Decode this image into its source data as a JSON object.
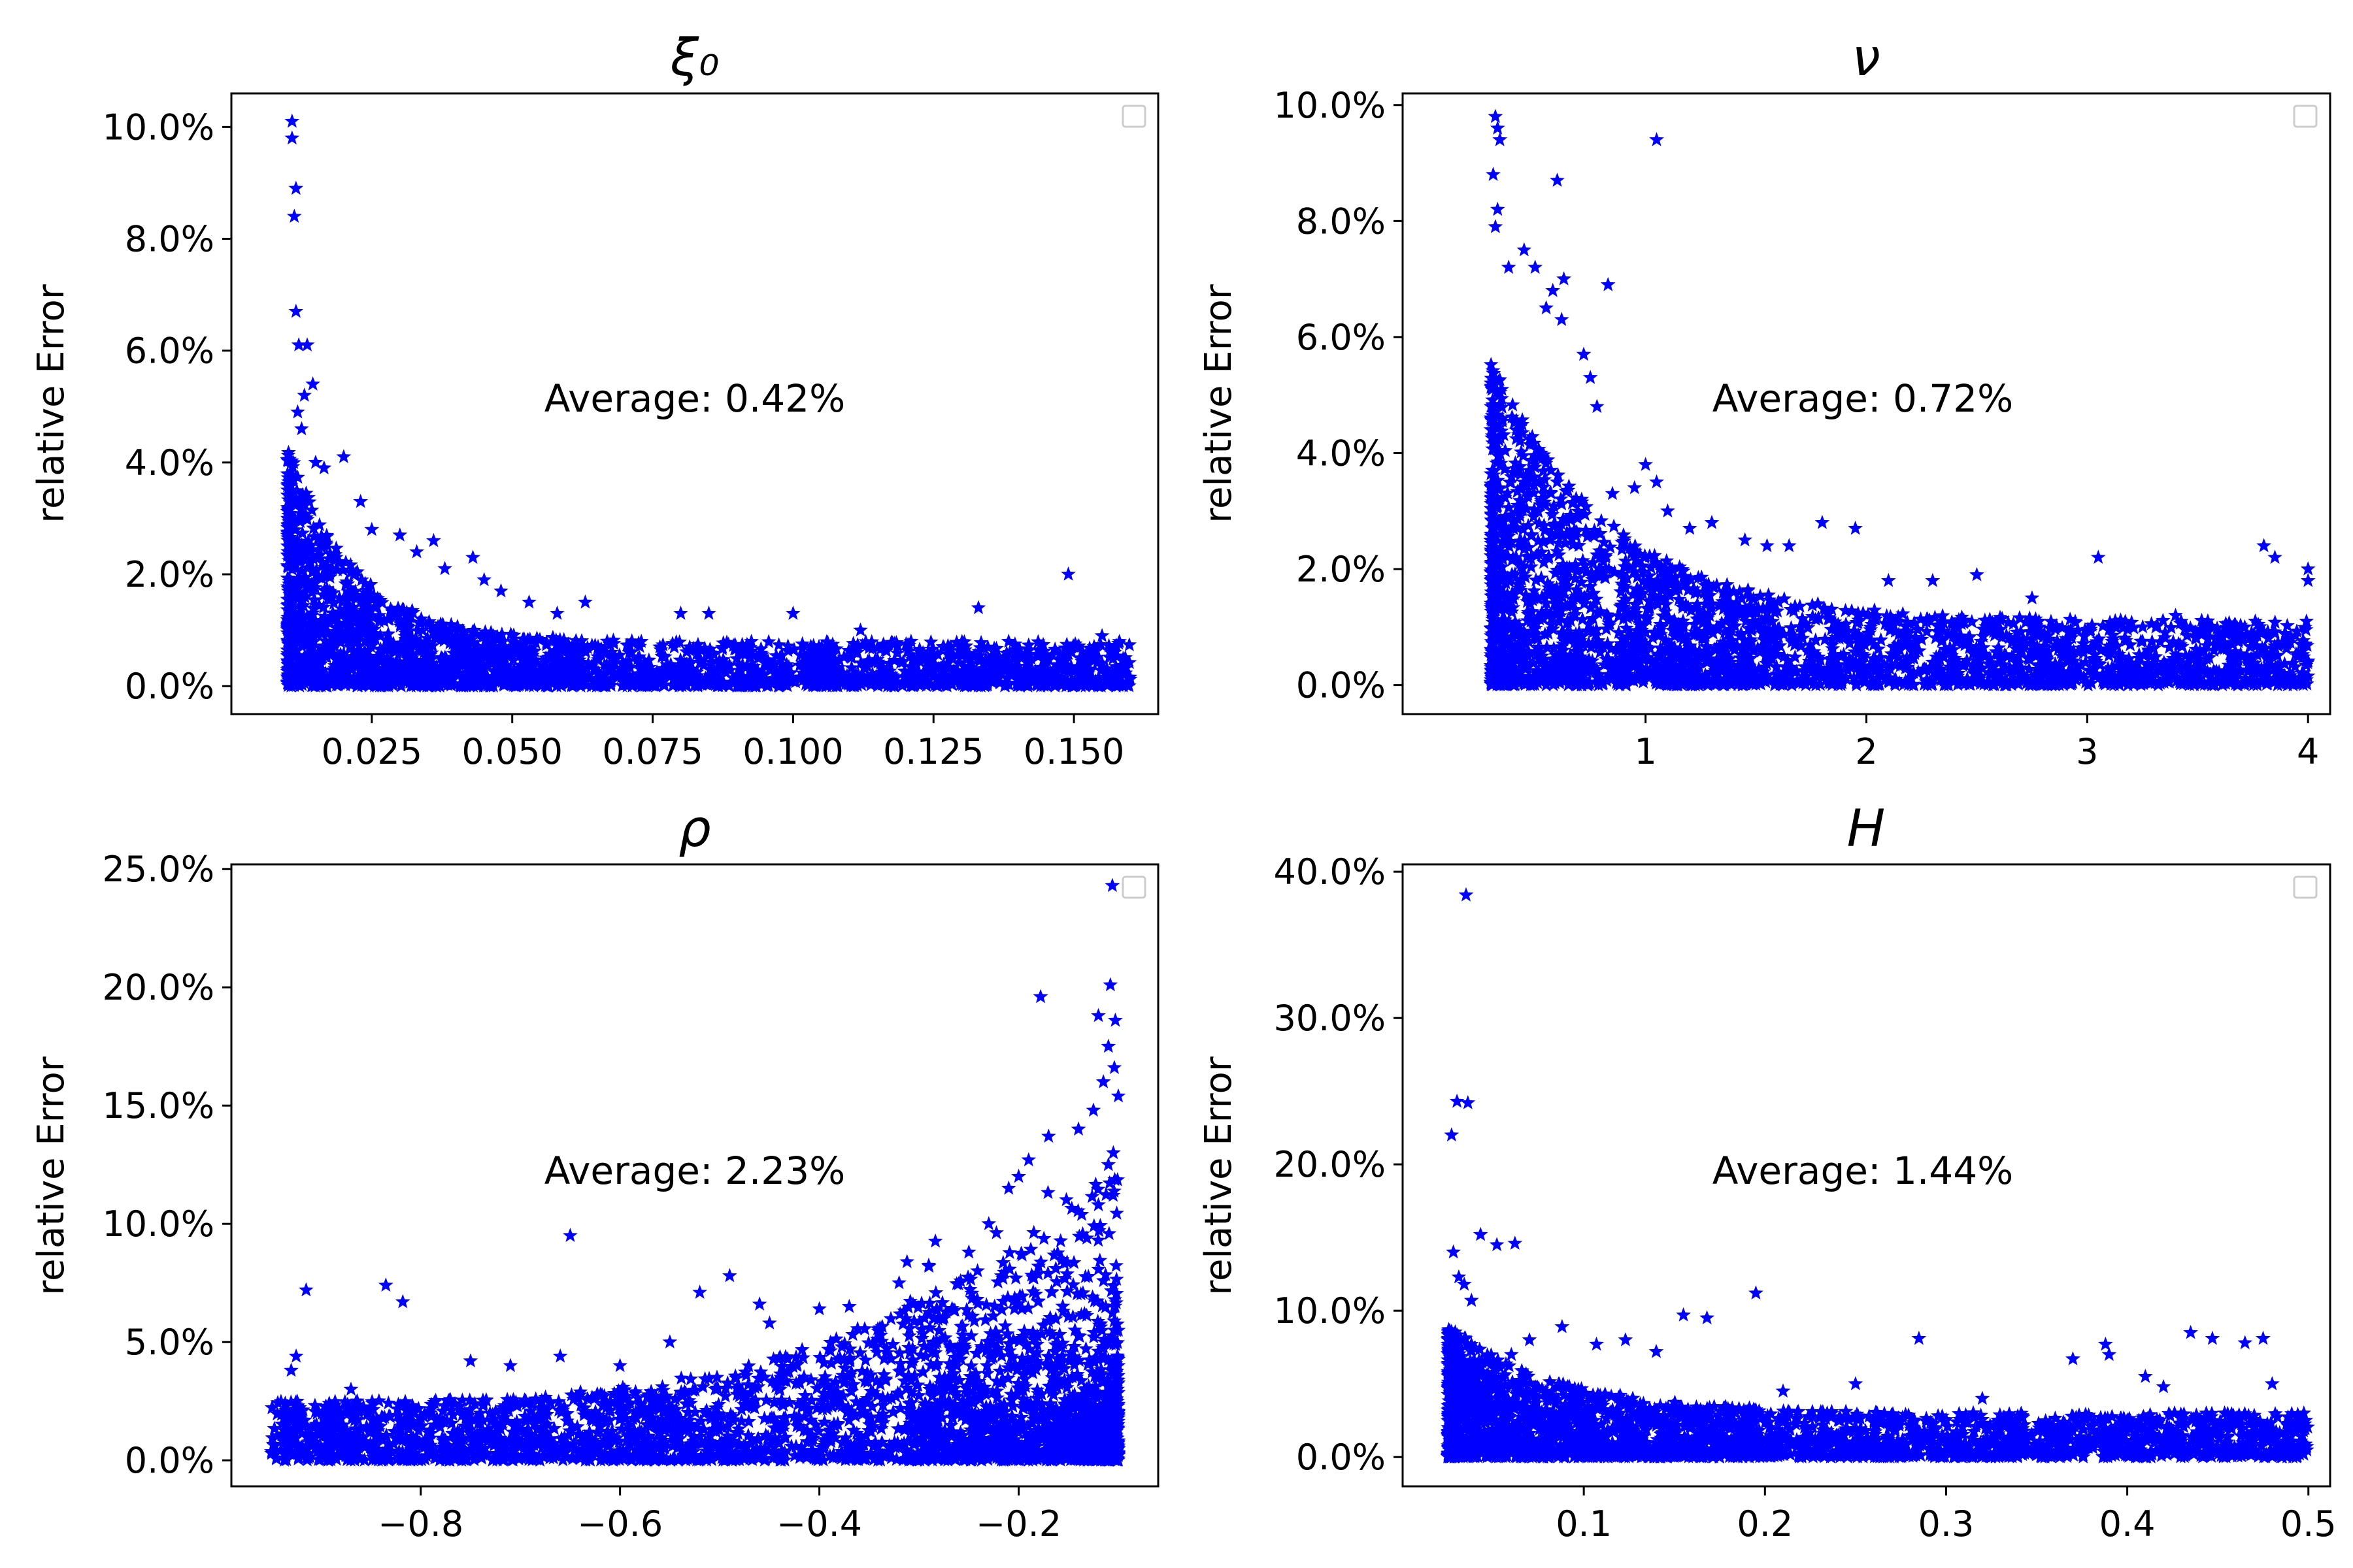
{
  "figure": {
    "marker_color": "#0000ff",
    "marker_shape": "star-icon"
  },
  "chart_data": [
    {
      "type": "scatter",
      "title": "ξ₀",
      "ylabel": "relative Error",
      "xlim": [
        0.0,
        0.165
      ],
      "ylim": [
        -0.005,
        0.106
      ],
      "xticks": [
        0.025,
        0.05,
        0.075,
        0.1,
        0.125,
        0.15
      ],
      "xtick_labels": [
        "0.025",
        "0.050",
        "0.075",
        "0.100",
        "0.125",
        "0.150"
      ],
      "yticks": [
        0.0,
        0.02,
        0.04,
        0.06,
        0.08,
        0.1
      ],
      "ytick_labels": [
        "0.0%",
        "2.0%",
        "4.0%",
        "6.0%",
        "8.0%",
        "10.0%"
      ],
      "annotation": "Average: 0.42%",
      "cloud": {
        "xmin": 0.01,
        "xmax": 0.16,
        "ymin": 0.0,
        "ymax_base": 0.008,
        "decay_peak": 0.035,
        "decay_scale": 0.012,
        "n": 2600
      },
      "outliers": [
        [
          0.0108,
          0.101
        ],
        [
          0.0108,
          0.098
        ],
        [
          0.0115,
          0.089
        ],
        [
          0.0112,
          0.084
        ],
        [
          0.0115,
          0.067
        ],
        [
          0.012,
          0.061
        ],
        [
          0.0135,
          0.061
        ],
        [
          0.0145,
          0.054
        ],
        [
          0.013,
          0.052
        ],
        [
          0.0118,
          0.049
        ],
        [
          0.0125,
          0.046
        ],
        [
          0.015,
          0.04
        ],
        [
          0.0165,
          0.039
        ],
        [
          0.02,
          0.041
        ],
        [
          0.023,
          0.033
        ],
        [
          0.025,
          0.028
        ],
        [
          0.03,
          0.027
        ],
        [
          0.033,
          0.024
        ],
        [
          0.036,
          0.026
        ],
        [
          0.038,
          0.021
        ],
        [
          0.043,
          0.023
        ],
        [
          0.045,
          0.019
        ],
        [
          0.048,
          0.017
        ],
        [
          0.053,
          0.015
        ],
        [
          0.058,
          0.013
        ],
        [
          0.063,
          0.015
        ],
        [
          0.08,
          0.013
        ],
        [
          0.085,
          0.013
        ],
        [
          0.1,
          0.013
        ],
        [
          0.133,
          0.014
        ],
        [
          0.149,
          0.02
        ],
        [
          0.112,
          0.01
        ],
        [
          0.121,
          0.008
        ],
        [
          0.155,
          0.009
        ]
      ],
      "legend_position": "top-right"
    },
    {
      "type": "scatter",
      "title": "ν",
      "ylabel": "relative Error",
      "xlim": [
        -0.1,
        4.1
      ],
      "ylim": [
        -0.005,
        0.102
      ],
      "xticks": [
        1,
        2,
        3,
        4
      ],
      "xtick_labels": [
        "1",
        "2",
        "3",
        "4"
      ],
      "yticks": [
        0.0,
        0.02,
        0.04,
        0.06,
        0.08,
        0.1
      ],
      "ytick_labels": [
        "0.0%",
        "2.0%",
        "4.0%",
        "6.0%",
        "8.0%",
        "10.0%"
      ],
      "annotation": "Average: 0.72%",
      "cloud": {
        "xmin": 0.3,
        "xmax": 4.0,
        "ymin": 0.0,
        "ymax_base": 0.011,
        "decay_peak": 0.045,
        "decay_scale": 0.55,
        "n": 2800
      },
      "outliers": [
        [
          0.32,
          0.098
        ],
        [
          0.33,
          0.096
        ],
        [
          0.34,
          0.094
        ],
        [
          0.31,
          0.088
        ],
        [
          0.33,
          0.082
        ],
        [
          0.32,
          0.079
        ],
        [
          0.6,
          0.087
        ],
        [
          1.05,
          0.094
        ],
        [
          0.45,
          0.075
        ],
        [
          0.5,
          0.072
        ],
        [
          0.58,
          0.068
        ],
        [
          0.63,
          0.07
        ],
        [
          0.83,
          0.069
        ],
        [
          0.38,
          0.072
        ],
        [
          0.55,
          0.065
        ],
        [
          0.62,
          0.063
        ],
        [
          0.72,
          0.057
        ],
        [
          0.75,
          0.053
        ],
        [
          0.78,
          0.048
        ],
        [
          0.85,
          0.033
        ],
        [
          0.95,
          0.034
        ],
        [
          1.0,
          0.038
        ],
        [
          1.05,
          0.035
        ],
        [
          1.1,
          0.03
        ],
        [
          1.2,
          0.027
        ],
        [
          1.3,
          0.028
        ],
        [
          1.45,
          0.025
        ],
        [
          1.55,
          0.024
        ],
        [
          1.65,
          0.024
        ],
        [
          1.8,
          0.028
        ],
        [
          1.95,
          0.027
        ],
        [
          2.1,
          0.018
        ],
        [
          2.3,
          0.018
        ],
        [
          2.5,
          0.019
        ],
        [
          2.75,
          0.015
        ],
        [
          3.05,
          0.022
        ],
        [
          3.4,
          0.012
        ],
        [
          3.8,
          0.024
        ],
        [
          3.85,
          0.022
        ],
        [
          4.0,
          0.02
        ],
        [
          4.0,
          0.018
        ]
      ],
      "legend_position": "top-right"
    },
    {
      "type": "scatter",
      "title": "ρ",
      "ylabel": "relative Error",
      "xlim": [
        -0.99,
        -0.06
      ],
      "ylim": [
        -0.011,
        0.252
      ],
      "xticks": [
        -0.8,
        -0.6,
        -0.4,
        -0.2
      ],
      "xtick_labels": [
        "−0.8",
        "−0.6",
        "−0.4",
        "−0.2"
      ],
      "yticks": [
        0.0,
        0.05,
        0.1,
        0.15,
        0.2,
        0.25
      ],
      "ytick_labels": [
        "0.0%",
        "5.0%",
        "10.0%",
        "15.0%",
        "20.0%",
        "25.0%"
      ],
      "annotation": "Average: 2.23%",
      "cloud": {
        "xmin": -0.95,
        "xmax": -0.1,
        "ymin": 0.0,
        "ymax_base": 0.025,
        "grow_peak": 0.1,
        "grow_from": -0.95,
        "n": 3000
      },
      "outliers": [
        [
          -0.106,
          0.243
        ],
        [
          -0.108,
          0.201
        ],
        [
          -0.178,
          0.196
        ],
        [
          -0.103,
          0.186
        ],
        [
          -0.12,
          0.188
        ],
        [
          -0.11,
          0.175
        ],
        [
          -0.104,
          0.166
        ],
        [
          -0.1,
          0.154
        ],
        [
          -0.115,
          0.16
        ],
        [
          -0.125,
          0.148
        ],
        [
          -0.14,
          0.14
        ],
        [
          -0.17,
          0.137
        ],
        [
          -0.19,
          0.127
        ],
        [
          -0.2,
          0.12
        ],
        [
          -0.21,
          0.115
        ],
        [
          -0.65,
          0.095
        ],
        [
          -0.915,
          0.072
        ],
        [
          -0.835,
          0.074
        ],
        [
          -0.818,
          0.067
        ],
        [
          -0.52,
          0.071
        ],
        [
          -0.49,
          0.078
        ],
        [
          -0.46,
          0.066
        ],
        [
          -0.4,
          0.064
        ],
        [
          -0.75,
          0.042
        ],
        [
          -0.71,
          0.04
        ],
        [
          -0.66,
          0.044
        ],
        [
          -0.6,
          0.04
        ],
        [
          -0.93,
          0.038
        ],
        [
          -0.925,
          0.044
        ],
        [
          -0.87,
          0.03
        ],
        [
          -0.55,
          0.05
        ],
        [
          -0.45,
          0.058
        ],
        [
          -0.37,
          0.065
        ],
        [
          -0.32,
          0.075
        ],
        [
          -0.29,
          0.082
        ],
        [
          -0.25,
          0.088
        ],
        [
          -0.23,
          0.1
        ],
        [
          -0.11,
          0.125
        ],
        [
          -0.105,
          0.13
        ],
        [
          -0.12,
          0.108
        ]
      ],
      "legend_position": "top-right"
    },
    {
      "type": "scatter",
      "title": "H",
      "ylabel": "relative Error",
      "xlim": [
        -0.0,
        0.512
      ],
      "ylim": [
        -0.02,
        0.405
      ],
      "xticks": [
        0.1,
        0.2,
        0.3,
        0.4,
        0.5
      ],
      "xtick_labels": [
        "0.1",
        "0.2",
        "0.3",
        "0.4",
        "0.5"
      ],
      "yticks": [
        0.0,
        0.1,
        0.2,
        0.3,
        0.4
      ],
      "ytick_labels": [
        "0.0%",
        "10.0%",
        "20.0%",
        "30.0%",
        "40.0%"
      ],
      "annotation": "Average: 1.44%",
      "cloud": {
        "xmin": 0.025,
        "xmax": 0.5,
        "ymin": 0.0,
        "ymax_base": 0.03,
        "decay_peak": 0.06,
        "decay_scale": 0.06,
        "n": 2800
      },
      "outliers": [
        [
          0.035,
          0.384
        ],
        [
          0.03,
          0.243
        ],
        [
          0.036,
          0.242
        ],
        [
          0.027,
          0.22
        ],
        [
          0.043,
          0.152
        ],
        [
          0.052,
          0.145
        ],
        [
          0.062,
          0.146
        ],
        [
          0.028,
          0.14
        ],
        [
          0.031,
          0.123
        ],
        [
          0.034,
          0.118
        ],
        [
          0.038,
          0.107
        ],
        [
          0.088,
          0.089
        ],
        [
          0.107,
          0.077
        ],
        [
          0.123,
          0.08
        ],
        [
          0.14,
          0.072
        ],
        [
          0.155,
          0.097
        ],
        [
          0.168,
          0.095
        ],
        [
          0.195,
          0.112
        ],
        [
          0.285,
          0.081
        ],
        [
          0.37,
          0.067
        ],
        [
          0.388,
          0.077
        ],
        [
          0.41,
          0.055
        ],
        [
          0.435,
          0.085
        ],
        [
          0.447,
          0.081
        ],
        [
          0.465,
          0.078
        ],
        [
          0.475,
          0.081
        ],
        [
          0.48,
          0.05
        ],
        [
          0.39,
          0.07
        ],
        [
          0.42,
          0.048
        ],
        [
          0.25,
          0.05
        ],
        [
          0.32,
          0.04
        ],
        [
          0.21,
          0.045
        ],
        [
          0.06,
          0.07
        ],
        [
          0.07,
          0.08
        ]
      ],
      "legend_position": "top-right"
    }
  ]
}
